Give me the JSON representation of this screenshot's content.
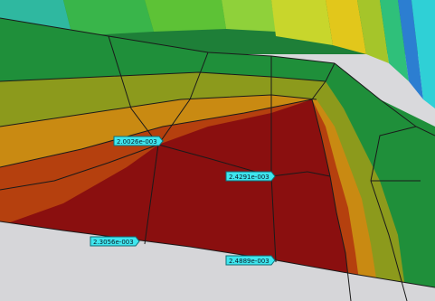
{
  "viewport": {
    "name": "fea-contour-plot"
  },
  "colors": {
    "max_red": "#8a0f0f",
    "orange_red": "#b5400e",
    "orange": "#c98a12",
    "olive": "#9a9f18",
    "yellow_green": "#b8c82a",
    "green": "#2f9b2f",
    "dark_green": "#1e7f38",
    "teal": "#27b59a",
    "cyan": "#2fd0d6",
    "blue": "#2c7ed1",
    "light_gray": "#d7d7da",
    "mesh_line": "#1a1a1a",
    "probe_fill": "#3fe6ee",
    "probe_border": "#0f6f78"
  },
  "probes": [
    {
      "id": "probe-1",
      "value": "2.0026e-003"
    },
    {
      "id": "probe-2",
      "value": "2.4291e-003"
    },
    {
      "id": "probe-3",
      "value": "2.3056e-003"
    },
    {
      "id": "probe-4",
      "value": "2.4889e-003"
    }
  ]
}
